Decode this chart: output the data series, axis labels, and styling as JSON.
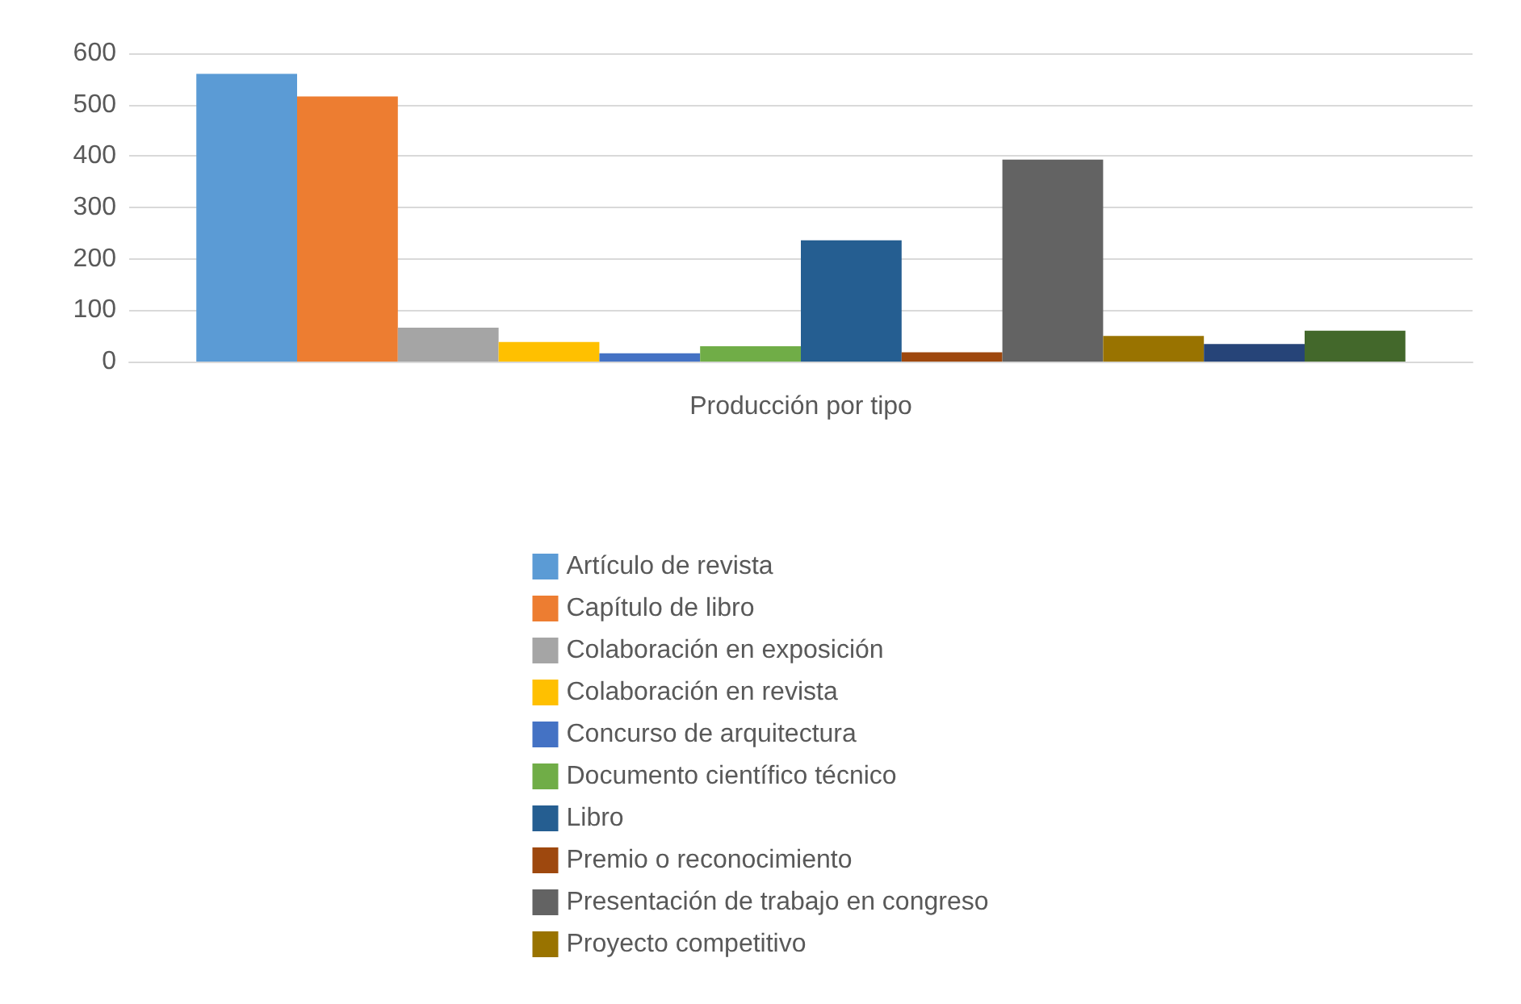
{
  "chart_data": {
    "type": "bar",
    "categories": [
      "Producción por tipo"
    ],
    "series": [
      {
        "name": "Artículo de revista",
        "color": "#5b9bd5",
        "values": [
          560
        ]
      },
      {
        "name": "Capítulo de libro",
        "color": "#ed7d31",
        "values": [
          516
        ]
      },
      {
        "name": "Colaboración en exposición",
        "color": "#a5a5a5",
        "values": [
          66
        ]
      },
      {
        "name": "Colaboración en revista",
        "color": "#ffc000",
        "values": [
          38
        ]
      },
      {
        "name": "Concurso de arquitectura",
        "color": "#4472c4",
        "values": [
          16
        ]
      },
      {
        "name": "Documento científico técnico",
        "color": "#70ad47",
        "values": [
          30
        ]
      },
      {
        "name": "Libro",
        "color": "#255e91",
        "values": [
          236
        ]
      },
      {
        "name": "Premio o reconocimiento",
        "color": "#9e480e",
        "values": [
          18
        ]
      },
      {
        "name": "Presentación de trabajo en congreso",
        "color": "#636363",
        "values": [
          393
        ]
      },
      {
        "name": "Proyecto competitivo",
        "color": "#997300",
        "values": [
          50
        ]
      },
      {
        "color": "#264478",
        "values": [
          34
        ]
      },
      {
        "color": "#43682b",
        "values": [
          60
        ]
      }
    ],
    "ylim": [
      0,
      600
    ],
    "yticks": [
      0,
      100,
      200,
      300,
      400,
      500,
      600
    ],
    "grid": "y",
    "legend": "bottom"
  }
}
